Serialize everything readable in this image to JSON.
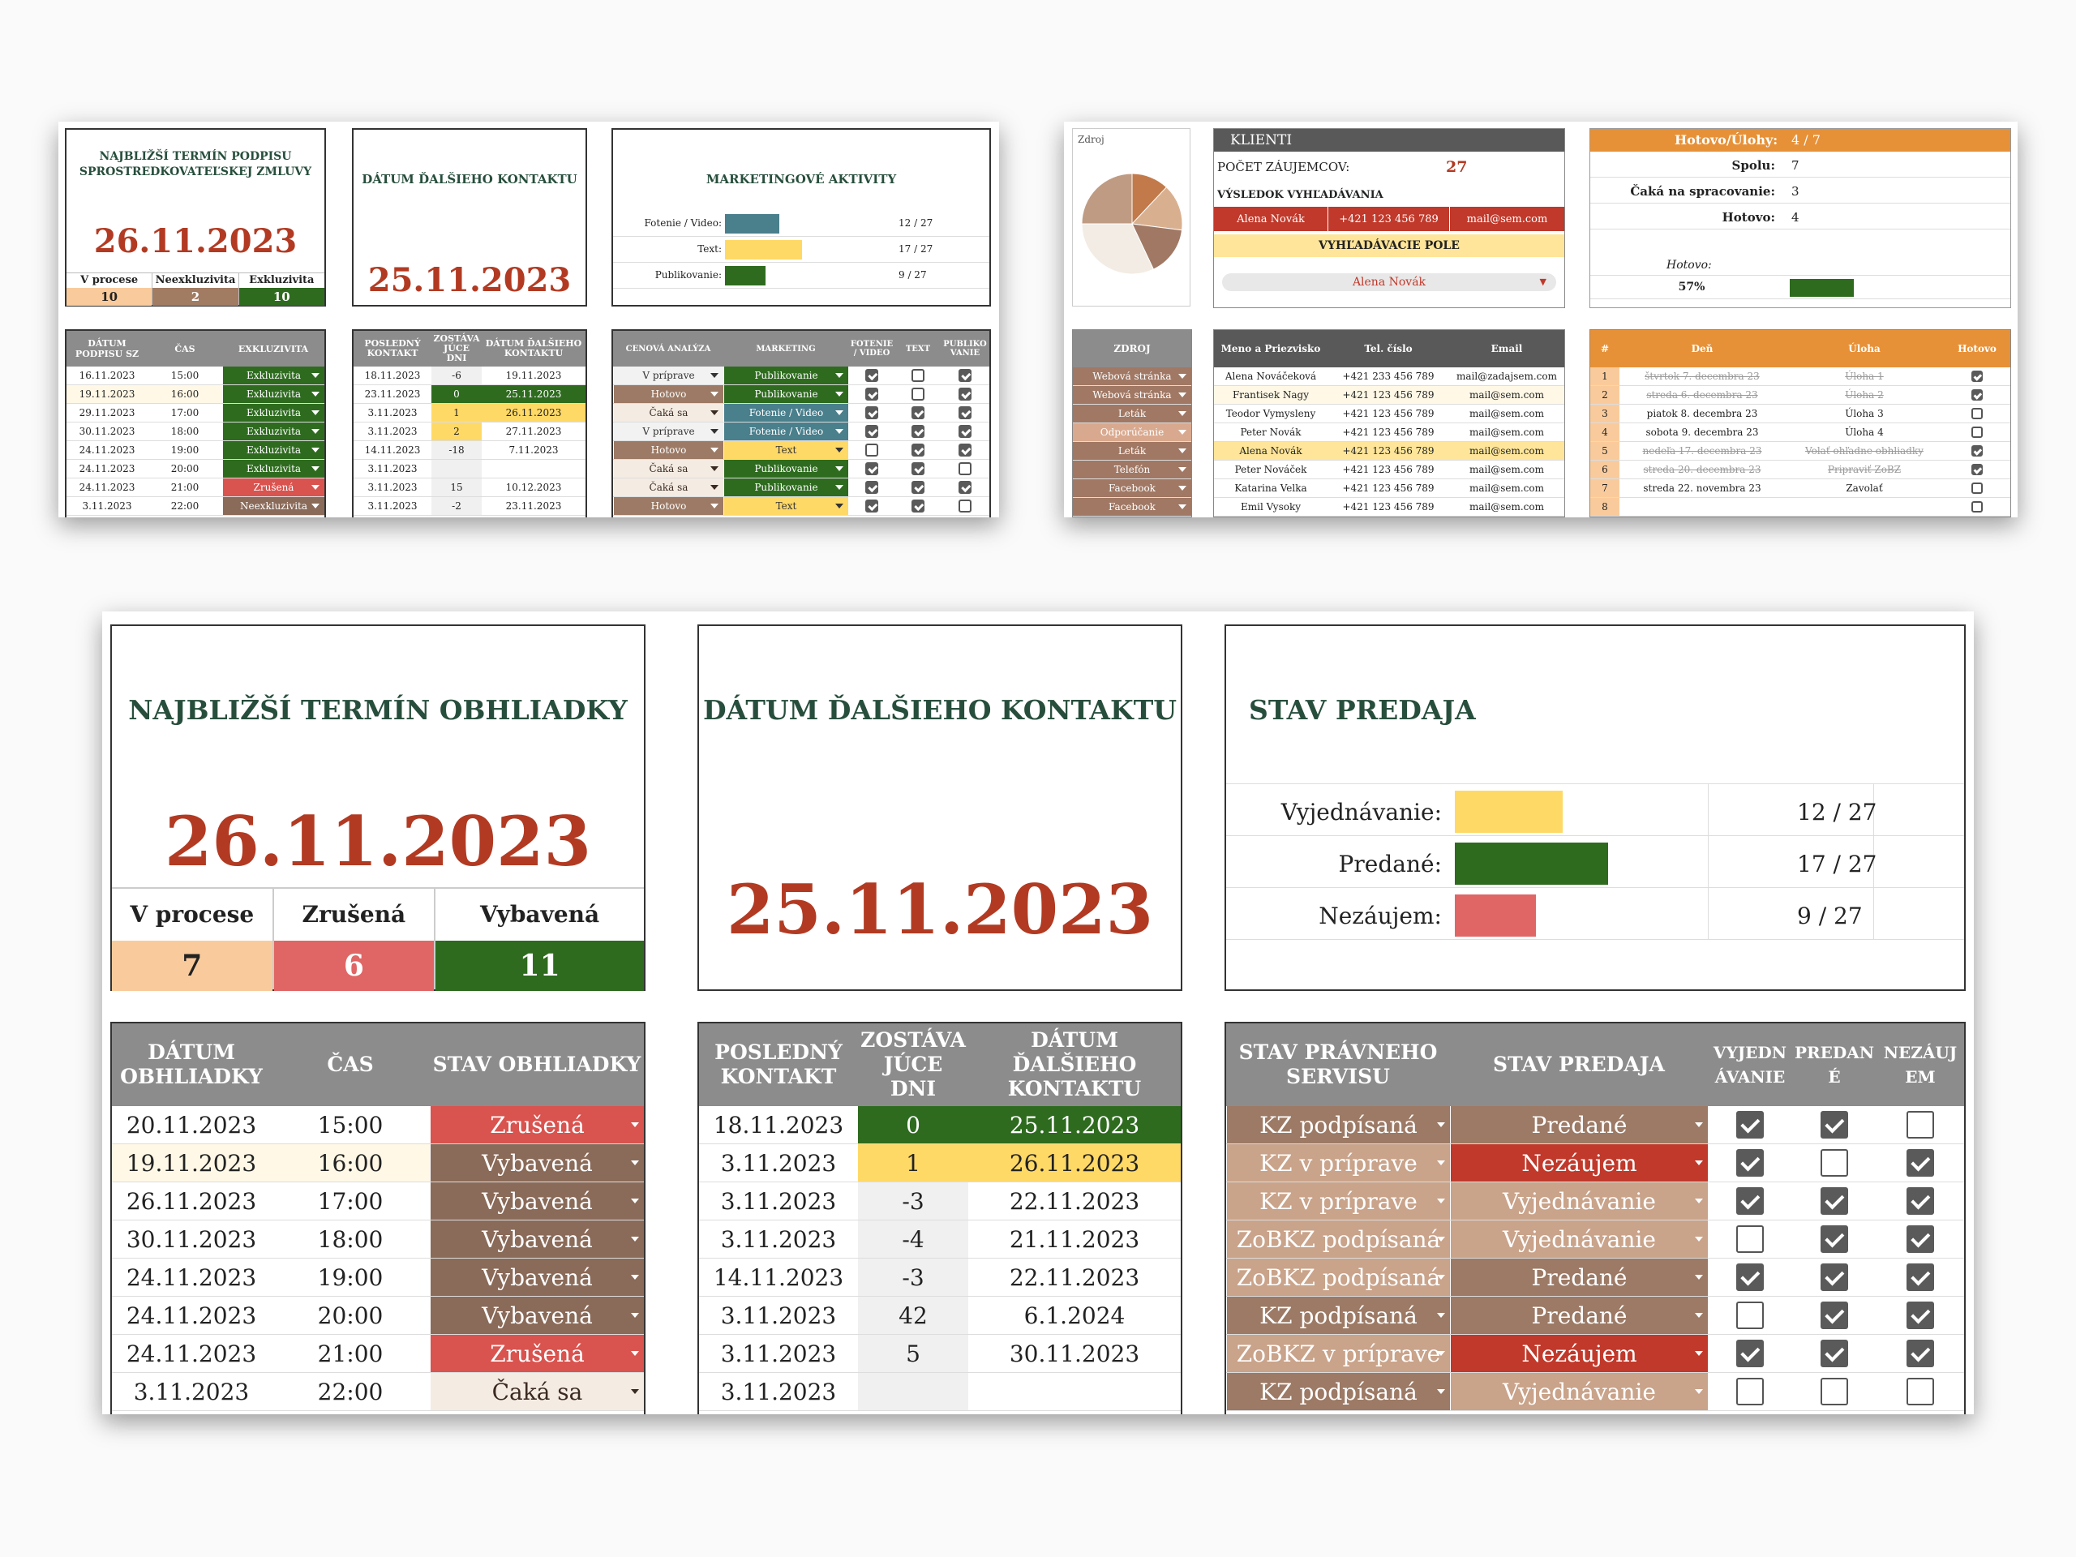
{
  "s1": {
    "panel1": {
      "title": "NAJBLIŽŠÍ TERMÍN PODPISU SPROSTREDKOVATEĽSKEJ ZMLUVY",
      "date": "26.11.2023",
      "stats": [
        {
          "label": "V procese",
          "value": "10"
        },
        {
          "label": "Neexkluzivita",
          "value": "2"
        },
        {
          "label": "Exkluzivita",
          "value": "10"
        }
      ]
    },
    "panel2": {
      "title": "DÁTUM ĎALŠIEHO KONTAKTU",
      "date": "25.11.2023"
    },
    "panel3": {
      "title": "MARKETINGOVÉ AKTIVITY",
      "bars": [
        {
          "label": "Fotenie / Video:",
          "fraction": 0.444,
          "count": "12 / 27",
          "color": "#4a7f8c"
        },
        {
          "label": "Text:",
          "fraction": 0.63,
          "count": "17 / 27",
          "color": "#ffd966"
        },
        {
          "label": "Publikovanie:",
          "fraction": 0.333,
          "count": "9 / 27",
          "color": "#2e6b1f"
        }
      ]
    },
    "t1": {
      "headers": [
        "DÁTUM PODPISU SZ",
        "ČAS",
        "EXKLUZIVITA"
      ],
      "rows": [
        [
          "16.11.2023",
          "15:00",
          "Exkluzivita"
        ],
        [
          "19.11.2023",
          "16:00",
          "Exkluzivita"
        ],
        [
          "29.11.2023",
          "17:00",
          "Exkluzivita"
        ],
        [
          "30.11.2023",
          "18:00",
          "Exkluzivita"
        ],
        [
          "24.11.2023",
          "19:00",
          "Exkluzivita"
        ],
        [
          "24.11.2023",
          "20:00",
          "Exkluzivita"
        ],
        [
          "24.11.2023",
          "21:00",
          "Zrušená"
        ],
        [
          "3.11.2023",
          "22:00",
          "Neexkluzivita"
        ]
      ]
    },
    "t2": {
      "headers": [
        "POSLEDNÝ KONTAKT",
        "ZOSTÁVA JÚCE DNI",
        "DÁTUM ĎALŠIEHO KONTAKTU"
      ],
      "rows": [
        [
          "18.11.2023",
          "-6",
          "19.11.2023"
        ],
        [
          "23.11.2023",
          "0",
          "25.11.2023"
        ],
        [
          "3.11.2023",
          "1",
          "26.11.2023"
        ],
        [
          "3.11.2023",
          "2",
          "27.11.2023"
        ],
        [
          "14.11.2023",
          "-18",
          "7.11.2023"
        ],
        [
          "3.11.2023",
          "",
          ""
        ],
        [
          "3.11.2023",
          "15",
          "10.12.2023"
        ],
        [
          "3.11.2023",
          "-2",
          "23.11.2023"
        ]
      ]
    },
    "t3": {
      "headers": [
        "CENOVÁ ANALÝZA",
        "MARKETING",
        "FOTENIE / VIDEO",
        "TEXT",
        "PUBLIKO VANIE"
      ],
      "rows": [
        [
          "V príprave",
          "Publikovanie",
          1,
          0,
          1
        ],
        [
          "Hotovo",
          "Publikovanie",
          1,
          0,
          1
        ],
        [
          "Čaká sa",
          "Fotenie / Video",
          1,
          1,
          1
        ],
        [
          "V príprave",
          "Fotenie / Video",
          1,
          1,
          1
        ],
        [
          "Hotovo",
          "Text",
          0,
          1,
          1
        ],
        [
          "Čaká sa",
          "Publikovanie",
          1,
          1,
          0
        ],
        [
          "Čaká sa",
          "Publikovanie",
          1,
          1,
          1
        ],
        [
          "Hotovo",
          "Text",
          1,
          1,
          0
        ]
      ]
    }
  },
  "s2": {
    "pie": {
      "label": "Zdroj",
      "slices": [
        0.12,
        0.15,
        0.16,
        0.32,
        0.25
      ]
    },
    "klienti": {
      "title": "KLIENTI",
      "count_label": "POČET ZÁUJEMCOV:",
      "count": "27",
      "result_label": "VÝSLEDOK VYHĽADÁVANIA",
      "result": [
        "Alena Novák",
        "+421 123 456 789",
        "mail@sem.com"
      ],
      "search_label": "VYHĽADÁVACIE POLE",
      "search_value": "Alena Novák"
    },
    "tasks": {
      "header_label": "Hotovo/Úlohy:",
      "header_value": "4 / 7",
      "rows": [
        [
          "Spolu:",
          "7"
        ],
        [
          "Čaká na spracovanie:",
          "3"
        ],
        [
          "Hotovo:",
          "4"
        ]
      ],
      "done_label": "Hotovo:",
      "percent": "57%",
      "fraction": 0.57
    },
    "zdroj": {
      "header": "ZDROJ",
      "items": [
        "Webová stránka",
        "Webová stránka",
        "Leták",
        "Odporúčanie",
        "Leták",
        "Telefón",
        "Facebook",
        "Facebook"
      ]
    },
    "contacts": {
      "headers": [
        "Meno a Priezvisko",
        "Tel. číslo",
        "Email"
      ],
      "rows": [
        [
          "Alena Nováčeková",
          "+421 233 456 789",
          "mail@zadajsem.com"
        ],
        [
          "Frantisek Nagy",
          "+421 123 456 789",
          "mail@sem.com"
        ],
        [
          "Teodor Vymysleny",
          "+421 123 456 789",
          "mail@sem.com"
        ],
        [
          "Peter Novák",
          "+421 123 456 789",
          "mail@sem.com"
        ],
        [
          "Alena Novák",
          "+421 123 456 789",
          "mail@sem.com"
        ],
        [
          "Peter Nováček",
          "+421 123 456 789",
          "mail@sem.com"
        ],
        [
          "Katarina Velka",
          "+421 123 456 789",
          "mail@sem.com"
        ],
        [
          "Emil Vysoky",
          "+421 123 456 789",
          "mail@sem.com"
        ]
      ]
    },
    "todo": {
      "headers": [
        "#",
        "Deň",
        "Úloha",
        "Hotovo"
      ],
      "rows": [
        [
          "1",
          "štvrtok 7. decembra 23",
          "Úloha 1",
          1
        ],
        [
          "2",
          "streda 6. decembra 23",
          "Úloha 2",
          1
        ],
        [
          "3",
          "piatok 8. decembra 23",
          "Úloha 3",
          0
        ],
        [
          "4",
          "sobota 9. decembra 23",
          "Úloha 4",
          0
        ],
        [
          "5",
          "nedeľa 17. decembra 23",
          "Volať ohľadne obhliadky",
          1
        ],
        [
          "6",
          "streda 20. decembra 23",
          "Pripraviť ZoBZ",
          1
        ],
        [
          "7",
          "streda 22. novembra 23",
          "Zavolať",
          0
        ],
        [
          "8",
          "",
          "",
          0
        ]
      ]
    }
  },
  "s3": {
    "panel1": {
      "title": "NAJBLIŽŠÍ TERMÍN OBHLIADKY",
      "date": "26.11.2023",
      "stats": [
        {
          "label": "V procese",
          "value": "7"
        },
        {
          "label": "Zrušená",
          "value": "6"
        },
        {
          "label": "Vybavená",
          "value": "11"
        }
      ]
    },
    "panel2": {
      "title": "DÁTUM ĎALŠIEHO KONTAKTU",
      "date": "25.11.2023"
    },
    "panel3": {
      "title": "STAV PREDAJA",
      "bars": [
        {
          "label": "Vyjednávanie:",
          "fraction": 0.444,
          "count": "12 / 27",
          "color": "#ffd966"
        },
        {
          "label": "Predané:",
          "fraction": 0.63,
          "count": "17 / 27",
          "color": "#2e6b1f"
        },
        {
          "label": "Nezáujem:",
          "fraction": 0.333,
          "count": "9 / 27",
          "color": "#e06666"
        }
      ]
    },
    "t1": {
      "headers": [
        "DÁTUM OBHLIADKY",
        "ČAS",
        "STAV OBHLIADKY"
      ],
      "rows": [
        [
          "20.11.2023",
          "15:00",
          "Zrušená"
        ],
        [
          "19.11.2023",
          "16:00",
          "Vybavená"
        ],
        [
          "26.11.2023",
          "17:00",
          "Vybavená"
        ],
        [
          "30.11.2023",
          "18:00",
          "Vybavená"
        ],
        [
          "24.11.2023",
          "19:00",
          "Vybavená"
        ],
        [
          "24.11.2023",
          "20:00",
          "Vybavená"
        ],
        [
          "24.11.2023",
          "21:00",
          "Zrušená"
        ],
        [
          "3.11.2023",
          "22:00",
          "Čaká sa"
        ]
      ]
    },
    "t2": {
      "headers": [
        "POSLEDNÝ KONTAKT",
        "ZOSTÁVA JÚCE DNI",
        "DÁTUM ĎALŠIEHO KONTAKTU"
      ],
      "rows": [
        [
          "18.11.2023",
          "0",
          "25.11.2023"
        ],
        [
          "3.11.2023",
          "1",
          "26.11.2023"
        ],
        [
          "3.11.2023",
          "-3",
          "22.11.2023"
        ],
        [
          "3.11.2023",
          "-4",
          "21.11.2023"
        ],
        [
          "14.11.2023",
          "-3",
          "22.11.2023"
        ],
        [
          "3.11.2023",
          "42",
          "6.1.2024"
        ],
        [
          "3.11.2023",
          "5",
          "30.11.2023"
        ],
        [
          "3.11.2023",
          "",
          ""
        ]
      ]
    },
    "t3": {
      "headers": [
        "STAV PRÁVNEHO SERVISU",
        "STAV PREDAJA",
        "VYJEDN ÁVANIE",
        "PREDAN É",
        "NEZÁUJ EM"
      ],
      "rows": [
        [
          "KZ podpísaná",
          "Predané",
          1,
          1,
          0
        ],
        [
          "KZ v príprave",
          "Nezáujem",
          1,
          0,
          1
        ],
        [
          "KZ v príprave",
          "Vyjednávanie",
          1,
          1,
          1
        ],
        [
          "ZoBKZ podpísaná",
          "Vyjednávanie",
          0,
          1,
          1
        ],
        [
          "ZoBKZ podpísaná",
          "Predané",
          1,
          1,
          1
        ],
        [
          "KZ podpísaná",
          "Predané",
          0,
          1,
          1
        ],
        [
          "ZoBKZ v príprave",
          "Nezáujem",
          1,
          1,
          1
        ],
        [
          "KZ podpísaná",
          "Vyjednávanie",
          0,
          0,
          0
        ]
      ]
    }
  }
}
